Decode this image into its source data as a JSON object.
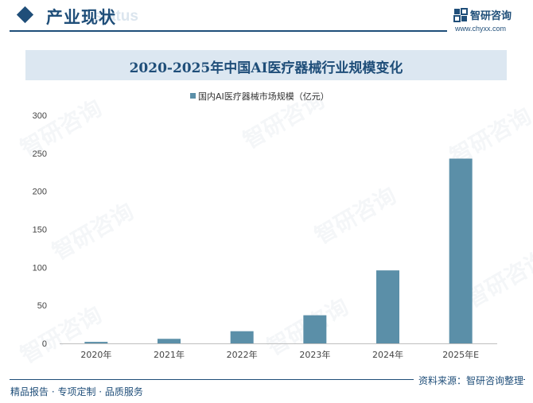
{
  "header": {
    "section_title": "产业现状",
    "section_ghost": "status",
    "brand_name": "智研咨询",
    "brand_url": "www.chyxx.com"
  },
  "watermark_text": "智研咨询",
  "chart_data": {
    "type": "bar",
    "title": "2020-2025年中国AI医疗器械行业规模变化",
    "categories": [
      "2020年",
      "2021年",
      "2022年",
      "2023年",
      "2024年",
      "2025年E"
    ],
    "series": [
      {
        "name": "国内AI医疗器械市场规模（亿元）",
        "values": [
          2,
          6,
          16,
          37,
          96,
          243
        ],
        "color": "#5b8fa8"
      }
    ],
    "ylim": [
      0,
      300
    ],
    "yticks": [
      0,
      50,
      100,
      150,
      200,
      250,
      300
    ],
    "grid": false,
    "legend": "top-center"
  },
  "footer": {
    "left": "精品报告 · 专项定制 · 品质服务",
    "right": "资料来源：智研咨询整理"
  }
}
